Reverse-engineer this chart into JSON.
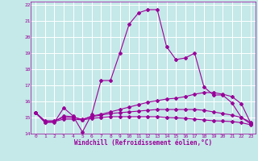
{
  "xlabel": "Windchill (Refroidissement éolien,°C)",
  "bg_color": "#c5e8e8",
  "grid_color": "#ffffff",
  "line_color": "#990099",
  "xlim": [
    -0.5,
    23.5
  ],
  "ylim": [
    14,
    22.2
  ],
  "yticks": [
    14,
    15,
    16,
    17,
    18,
    19,
    20,
    21,
    22
  ],
  "xticks": [
    0,
    1,
    2,
    3,
    4,
    5,
    6,
    7,
    8,
    9,
    10,
    11,
    12,
    13,
    14,
    15,
    16,
    17,
    18,
    19,
    20,
    21,
    22,
    23
  ],
  "line1_x": [
    0,
    1,
    2,
    3,
    4,
    5,
    6,
    7,
    8,
    9,
    10,
    11,
    12,
    13,
    14,
    15,
    16,
    17,
    18,
    19,
    20,
    21,
    22,
    23
  ],
  "line1_y": [
    15.3,
    14.7,
    14.7,
    15.6,
    15.1,
    14.1,
    15.2,
    17.3,
    17.3,
    19.0,
    20.8,
    21.5,
    21.7,
    21.7,
    19.4,
    18.6,
    18.7,
    19.0,
    16.9,
    16.4,
    16.4,
    15.9,
    15.0,
    14.7
  ],
  "line2_x": [
    0,
    1,
    2,
    3,
    4,
    5,
    6,
    7,
    8,
    9,
    10,
    11,
    12,
    13,
    14,
    15,
    16,
    17,
    18,
    19,
    20,
    21,
    22,
    23
  ],
  "line2_y": [
    15.3,
    14.7,
    14.75,
    15.1,
    15.05,
    14.85,
    15.1,
    15.2,
    15.35,
    15.5,
    15.65,
    15.8,
    15.95,
    16.05,
    16.15,
    16.2,
    16.3,
    16.45,
    16.55,
    16.55,
    16.45,
    16.3,
    15.85,
    14.65
  ],
  "line3_x": [
    0,
    1,
    2,
    3,
    4,
    5,
    6,
    7,
    8,
    9,
    10,
    11,
    12,
    13,
    14,
    15,
    16,
    17,
    18,
    19,
    20,
    21,
    22,
    23
  ],
  "line3_y": [
    15.3,
    14.8,
    14.8,
    15.0,
    15.0,
    14.9,
    15.05,
    15.15,
    15.25,
    15.3,
    15.35,
    15.4,
    15.45,
    15.5,
    15.5,
    15.5,
    15.5,
    15.5,
    15.45,
    15.35,
    15.25,
    15.15,
    15.0,
    14.6
  ],
  "line4_x": [
    0,
    1,
    2,
    3,
    4,
    5,
    6,
    7,
    8,
    9,
    10,
    11,
    12,
    13,
    14,
    15,
    16,
    17,
    18,
    19,
    20,
    21,
    22,
    23
  ],
  "line4_y": [
    15.3,
    14.75,
    14.75,
    14.9,
    14.9,
    14.85,
    14.95,
    15.0,
    15.05,
    15.05,
    15.05,
    15.05,
    15.05,
    15.05,
    15.0,
    14.98,
    14.95,
    14.9,
    14.85,
    14.8,
    14.78,
    14.75,
    14.68,
    14.55
  ]
}
